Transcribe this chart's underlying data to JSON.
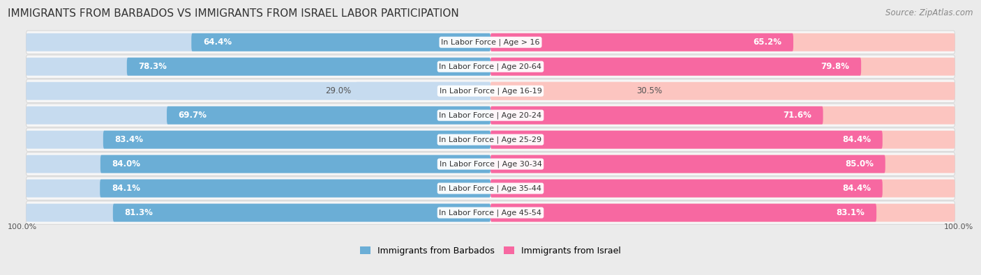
{
  "title": "IMMIGRANTS FROM BARBADOS VS IMMIGRANTS FROM ISRAEL LABOR PARTICIPATION",
  "source": "Source: ZipAtlas.com",
  "categories": [
    "In Labor Force | Age > 16",
    "In Labor Force | Age 20-64",
    "In Labor Force | Age 16-19",
    "In Labor Force | Age 20-24",
    "In Labor Force | Age 25-29",
    "In Labor Force | Age 30-34",
    "In Labor Force | Age 35-44",
    "In Labor Force | Age 45-54"
  ],
  "barbados_values": [
    64.4,
    78.3,
    29.0,
    69.7,
    83.4,
    84.0,
    84.1,
    81.3
  ],
  "israel_values": [
    65.2,
    79.8,
    30.5,
    71.6,
    84.4,
    85.0,
    84.4,
    83.1
  ],
  "barbados_color": "#6baed6",
  "israel_color": "#f768a1",
  "barbados_light_color": "#c6dbef",
  "israel_light_color": "#fcc5c0",
  "background_color": "#ebebeb",
  "row_bg_color": "#f7f7f7",
  "label_color_dark": "#555555",
  "label_color_white": "#ffffff",
  "max_value": 100.0,
  "legend_barbados": "Immigrants from Barbados",
  "legend_israel": "Immigrants from Israel",
  "title_fontsize": 11,
  "source_fontsize": 8.5,
  "bar_label_fontsize": 8.5,
  "category_fontsize": 8,
  "legend_fontsize": 9,
  "axis_label_fontsize": 8
}
